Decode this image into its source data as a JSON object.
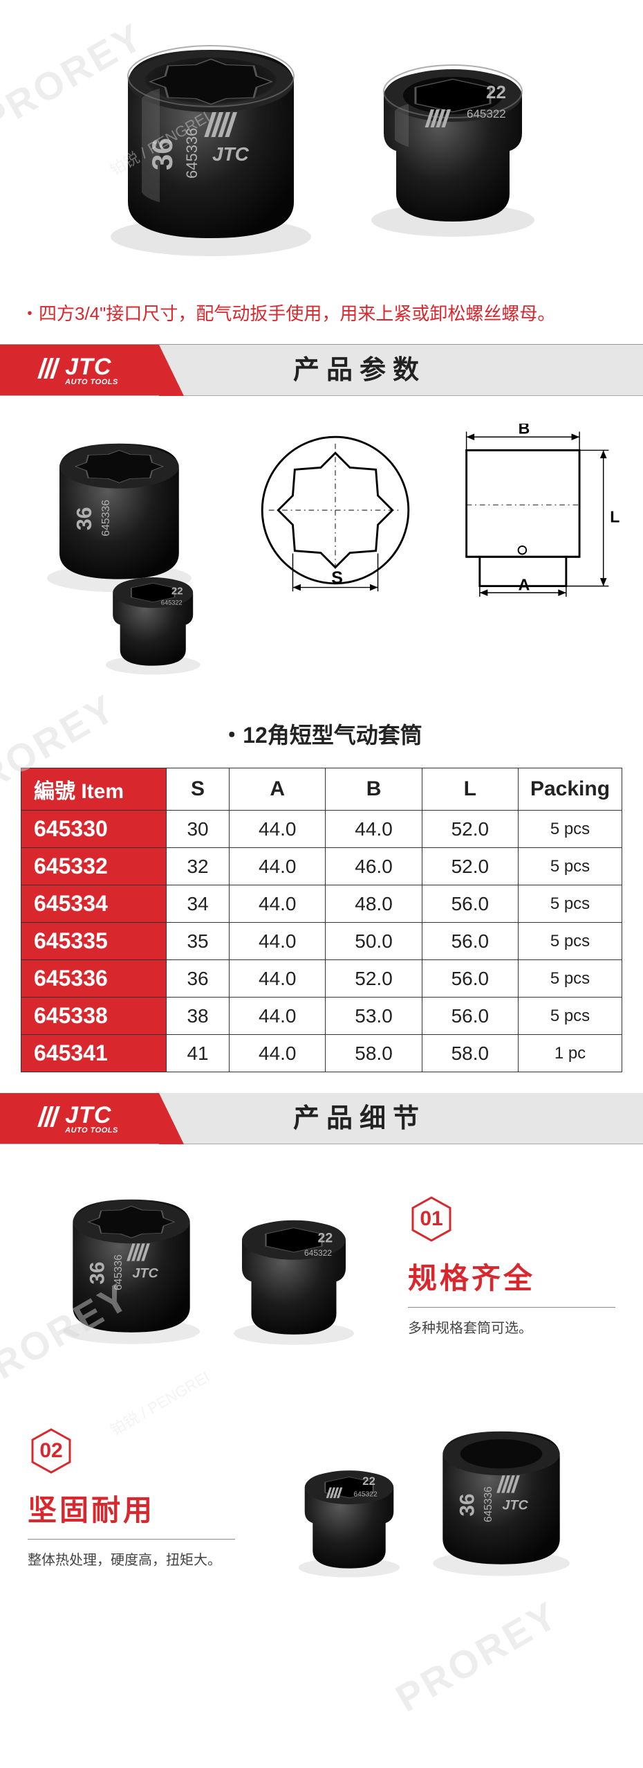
{
  "watermark": {
    "main": "PROREY",
    "sub": "铂锐 / PENGREI"
  },
  "hero_desc": "・四方3/4\"接口尺寸，配气动扳手使用，用来上紧或卸松螺丝螺母。",
  "section_params": "产品参数",
  "section_details": "产品细节",
  "logo": {
    "bars": 3,
    "main": "JTC",
    "sub": "AUTO TOOLS"
  },
  "subtitle": "・12角短型气动套筒",
  "diagram_labels": {
    "S": "S",
    "A": "A",
    "B": "B",
    "L": "L"
  },
  "socket_text": {
    "large": {
      "size": "36",
      "code": "645336"
    },
    "small": {
      "size": "22",
      "code": "645322"
    }
  },
  "table": {
    "headers": {
      "item": "編號 Item",
      "S": "S",
      "A": "A",
      "B": "B",
      "L": "L",
      "packing": "Packing"
    },
    "rows": [
      {
        "item": "645330",
        "S": "30",
        "A": "44.0",
        "B": "44.0",
        "L": "52.0",
        "packing": "5 pcs"
      },
      {
        "item": "645332",
        "S": "32",
        "A": "44.0",
        "B": "46.0",
        "L": "52.0",
        "packing": "5 pcs"
      },
      {
        "item": "645334",
        "S": "34",
        "A": "44.0",
        "B": "48.0",
        "L": "56.0",
        "packing": "5 pcs"
      },
      {
        "item": "645335",
        "S": "35",
        "A": "44.0",
        "B": "50.0",
        "L": "56.0",
        "packing": "5 pcs"
      },
      {
        "item": "645336",
        "S": "36",
        "A": "44.0",
        "B": "52.0",
        "L": "56.0",
        "packing": "5 pcs"
      },
      {
        "item": "645338",
        "S": "38",
        "A": "44.0",
        "B": "53.0",
        "L": "56.0",
        "packing": "5 pcs"
      },
      {
        "item": "645341",
        "S": "41",
        "A": "44.0",
        "B": "58.0",
        "L": "58.0",
        "packing": "1 pc"
      }
    ]
  },
  "details": [
    {
      "num": "01",
      "title": "规格齐全",
      "sub": "多种规格套筒可选。"
    },
    {
      "num": "02",
      "title": "坚固耐用",
      "sub": "整体热处理，硬度高，扭矩大。"
    }
  ],
  "colors": {
    "accent": "#d9272e",
    "header_bg": "#e6e6e6",
    "text": "#222222",
    "socket_dark": "#1a1a1a",
    "socket_mid": "#2d2d2d",
    "socket_hi": "#555555"
  }
}
